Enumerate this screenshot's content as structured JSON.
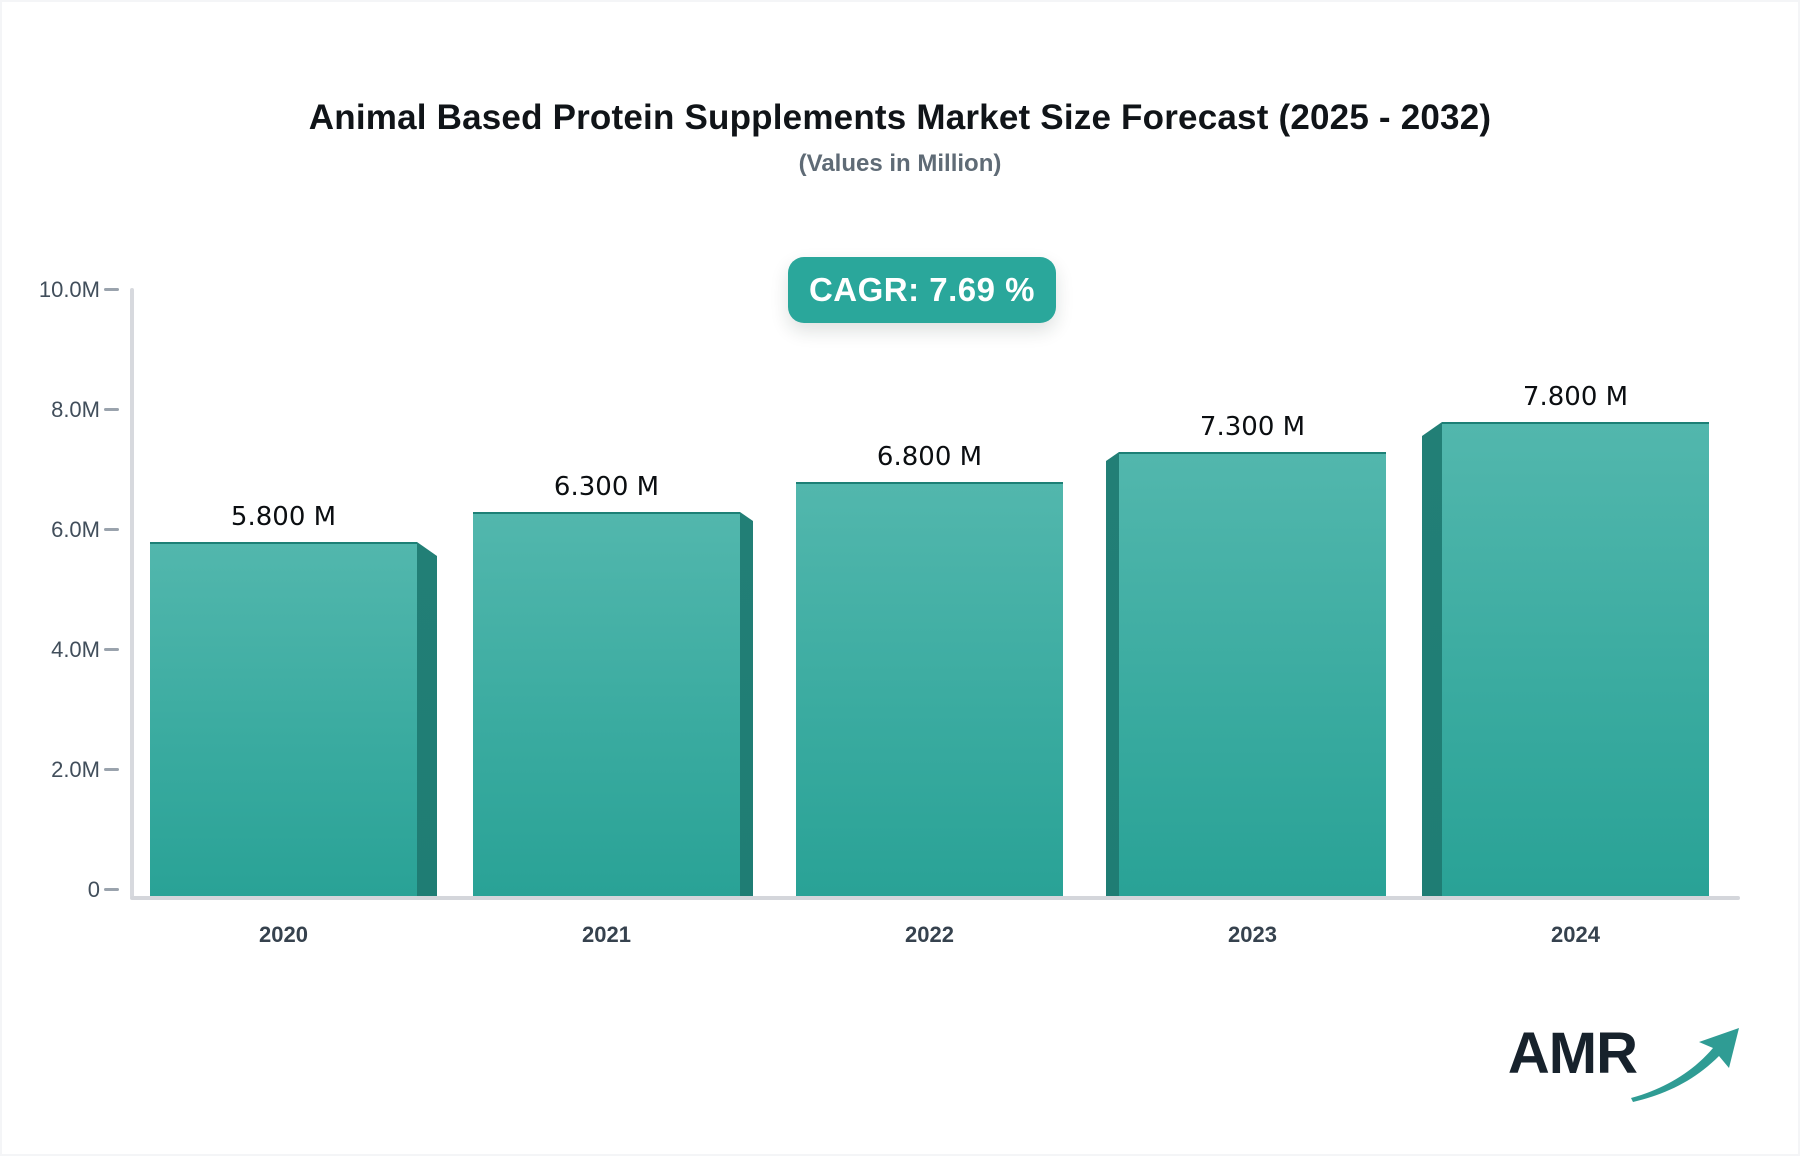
{
  "header": {
    "title": "Animal Based Protein Supplements Market Size Forecast (2025 - 2032)",
    "subtitle": "(Values in Million)",
    "cagr_badge": "CAGR: 7.69 %"
  },
  "chart_data": {
    "type": "bar",
    "categories": [
      "2020",
      "2021",
      "2022",
      "2023",
      "2024"
    ],
    "values": [
      5.8,
      6.3,
      6.8,
      7.3,
      7.8
    ],
    "bar_labels": [
      "5.800 M",
      "6.300 M",
      "6.800 M",
      "7.300 M",
      "7.800 M"
    ],
    "title": "Animal Based Protein Supplements Market Size Forecast (2025 - 2032)",
    "subtitle": "(Values in Million)",
    "xlabel": "",
    "ylabel": "",
    "ylim": [
      0,
      10
    ],
    "y_ticks": [
      {
        "value": 10,
        "label": "10.0M"
      },
      {
        "value": 8,
        "label": "8.0M"
      },
      {
        "value": 6,
        "label": "6.0M"
      },
      {
        "value": 4,
        "label": "4.0M"
      },
      {
        "value": 2,
        "label": "2.0M"
      },
      {
        "value": 0,
        "label": "0"
      }
    ],
    "grid": false,
    "legend": "none",
    "bar_style": "3d-prism",
    "colors": {
      "bar_top": "#52b7ad",
      "bar_bottom": "#29a296",
      "bar_side": "#1f7d74",
      "badge_bg": "#2aa79b",
      "axis_line": "#d7d9de",
      "tick_label": "#414e5b",
      "category_label": "#36424e",
      "value_label": "#0b0e11",
      "title": "#101418",
      "subtitle": "#5f6b76"
    }
  },
  "logo": {
    "text": "AMR",
    "arrow_icon": "growth-arrow-icon",
    "text_color": "#17222c",
    "arrow_color": "#2f9c94"
  }
}
